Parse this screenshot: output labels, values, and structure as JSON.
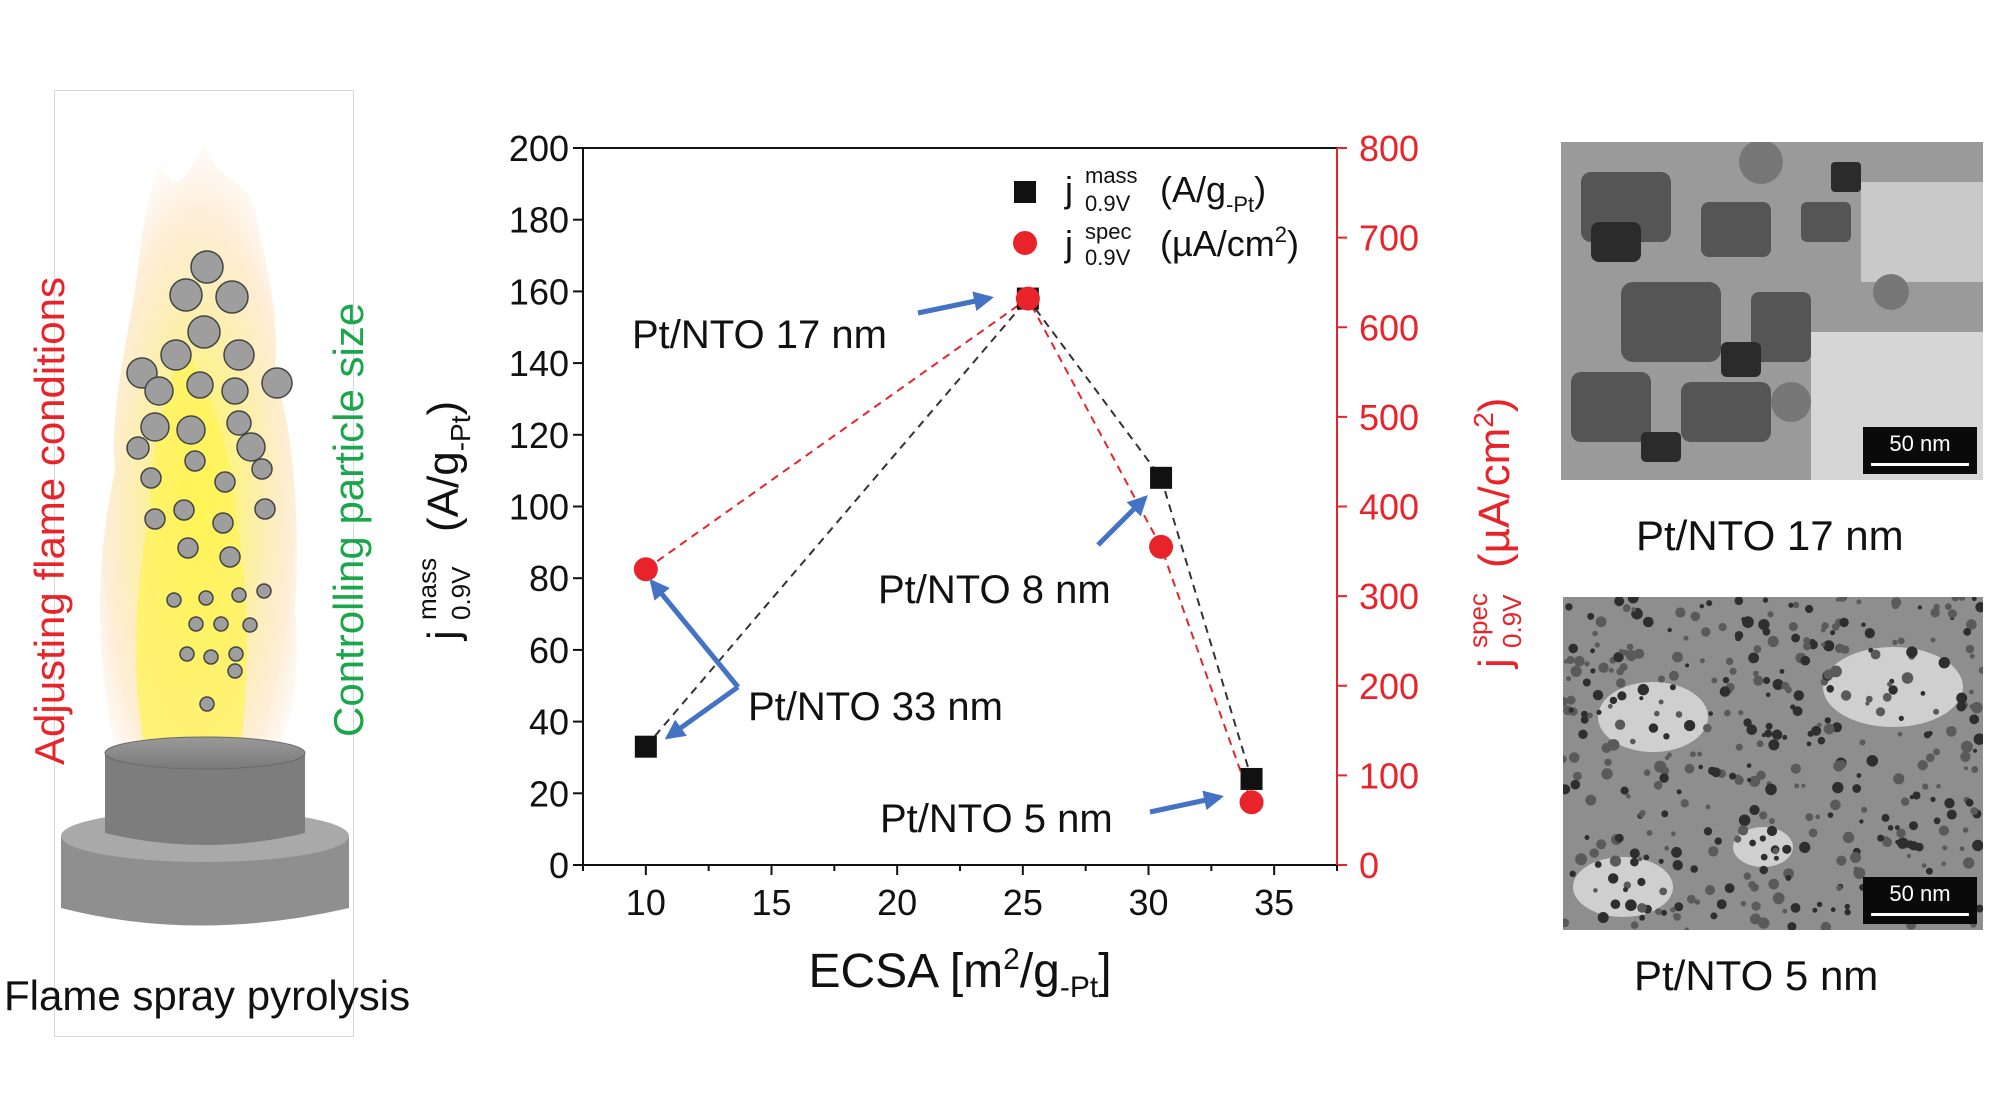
{
  "left_panel": {
    "side_label_red": "Adjusting flame conditions",
    "side_label_green": "Controlling particle size",
    "caption": "Flame spray pyrolysis",
    "colors": {
      "red": "#e8242a",
      "green": "#1aa64a"
    }
  },
  "chart_data": {
    "type": "scatter",
    "x": [
      10,
      25.2,
      30.5,
      34.1
    ],
    "xlabel": "ECSA [m2/g-Pt]",
    "xlim": [
      7.5,
      37.5
    ],
    "xticks": [
      10,
      15,
      20,
      25,
      30,
      35
    ],
    "ylabel_left": "j mass 0.9V (A/g-Pt)",
    "ylim_left": [
      0,
      200
    ],
    "yticks_left": [
      0,
      20,
      40,
      60,
      80,
      100,
      120,
      140,
      160,
      180,
      200
    ],
    "ylabel_right": "j spec 0.9V (µA/cm2)",
    "ylim_right": [
      0,
      800
    ],
    "yticks_right": [
      0,
      100,
      200,
      300,
      400,
      500,
      600,
      700,
      800
    ],
    "series": [
      {
        "name": "j mass 0.9V (A/g-Pt)",
        "axis": "left",
        "marker": "square",
        "color": "#111111",
        "x": [
          10,
          25.2,
          30.5,
          34.1
        ],
        "values": [
          33,
          158,
          108,
          24
        ]
      },
      {
        "name": "j spec 0.9V (µA/cm2)",
        "axis": "right",
        "marker": "circle",
        "color": "#e8242a",
        "x": [
          10,
          25.2,
          30.5,
          34.1
        ],
        "values": [
          330,
          632,
          355,
          70
        ]
      }
    ],
    "annotations": [
      "Pt/NTO 17 nm",
      "Pt/NTO 8 nm",
      "Pt/NTO 33 nm",
      "Pt/NTO 5 nm"
    ],
    "legend_position": "top-right",
    "grid": false
  },
  "legend": {
    "mass": {
      "j": "j",
      "sup": "mass",
      "sub": "0.9V",
      "unit": "(A/g",
      "unit_sub": "-Pt",
      "unit_close": ")"
    },
    "spec": {
      "j": "j",
      "sup": "spec",
      "sub": "0.9V",
      "unit": "(µA/cm",
      "unit_sup": "2",
      "unit_close": ")"
    }
  },
  "axis_titles": {
    "x": {
      "main": "ECSA [m",
      "sup": "2",
      "mid": "/g",
      "sub": "-Pt",
      "close": "]"
    },
    "y_left": {
      "j": "j",
      "sup": "mass",
      "sub": "0.9V",
      "unit": "(A/g",
      "unit_sub": "-Pt",
      "unit_close": ")"
    },
    "y_right": {
      "j": "j",
      "sup": "spec",
      "sub": "0.9V",
      "unit": "(µA/cm",
      "unit_sup": "2",
      "unit_close": ")"
    }
  },
  "right_panel": {
    "top_caption": "Pt/NTO 17 nm",
    "bottom_caption": "Pt/NTO 5 nm",
    "scale_label": "50 nm"
  }
}
